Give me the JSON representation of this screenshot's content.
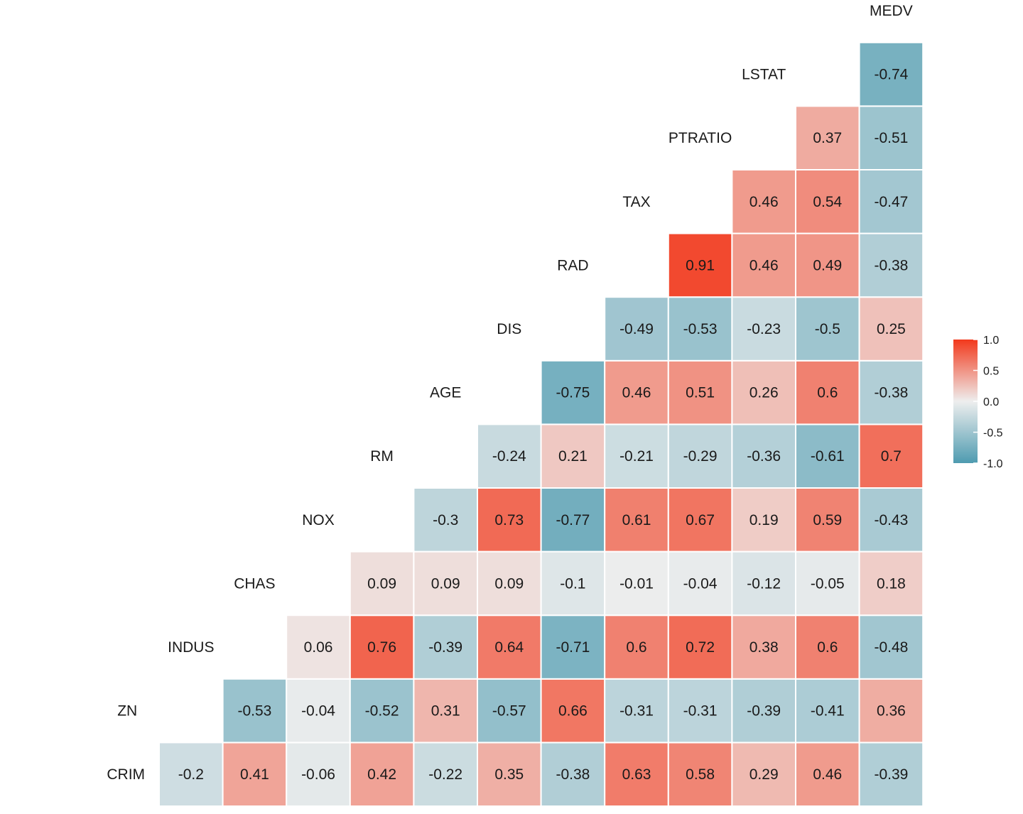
{
  "chart_data": {
    "type": "heatmap",
    "variables": [
      "CRIM",
      "ZN",
      "INDUS",
      "CHAS",
      "NOX",
      "RM",
      "AGE",
      "DIS",
      "RAD",
      "TAX",
      "PTRATIO",
      "LSTAT",
      "MEDV"
    ],
    "correlations": [
      [
        "CRIM",
        "ZN",
        -0.2
      ],
      [
        "CRIM",
        "INDUS",
        0.41
      ],
      [
        "CRIM",
        "CHAS",
        -0.06
      ],
      [
        "CRIM",
        "NOX",
        0.42
      ],
      [
        "CRIM",
        "RM",
        -0.22
      ],
      [
        "CRIM",
        "AGE",
        0.35
      ],
      [
        "CRIM",
        "DIS",
        -0.38
      ],
      [
        "CRIM",
        "RAD",
        0.63
      ],
      [
        "CRIM",
        "TAX",
        0.58
      ],
      [
        "CRIM",
        "PTRATIO",
        0.29
      ],
      [
        "CRIM",
        "LSTAT",
        0.46
      ],
      [
        "CRIM",
        "MEDV",
        -0.39
      ],
      [
        "ZN",
        "INDUS",
        -0.53
      ],
      [
        "ZN",
        "CHAS",
        -0.04
      ],
      [
        "ZN",
        "NOX",
        -0.52
      ],
      [
        "ZN",
        "RM",
        0.31
      ],
      [
        "ZN",
        "AGE",
        -0.57
      ],
      [
        "ZN",
        "DIS",
        0.66
      ],
      [
        "ZN",
        "RAD",
        -0.31
      ],
      [
        "ZN",
        "TAX",
        -0.31
      ],
      [
        "ZN",
        "PTRATIO",
        -0.39
      ],
      [
        "ZN",
        "LSTAT",
        -0.41
      ],
      [
        "ZN",
        "MEDV",
        0.36
      ],
      [
        "INDUS",
        "CHAS",
        0.06
      ],
      [
        "INDUS",
        "NOX",
        0.76
      ],
      [
        "INDUS",
        "RM",
        -0.39
      ],
      [
        "INDUS",
        "AGE",
        0.64
      ],
      [
        "INDUS",
        "DIS",
        -0.71
      ],
      [
        "INDUS",
        "RAD",
        0.6
      ],
      [
        "INDUS",
        "TAX",
        0.72
      ],
      [
        "INDUS",
        "PTRATIO",
        0.38
      ],
      [
        "INDUS",
        "LSTAT",
        0.6
      ],
      [
        "INDUS",
        "MEDV",
        -0.48
      ],
      [
        "CHAS",
        "NOX",
        0.09
      ],
      [
        "CHAS",
        "RM",
        0.09
      ],
      [
        "CHAS",
        "AGE",
        0.09
      ],
      [
        "CHAS",
        "DIS",
        -0.1
      ],
      [
        "CHAS",
        "RAD",
        -0.01
      ],
      [
        "CHAS",
        "TAX",
        -0.04
      ],
      [
        "CHAS",
        "PTRATIO",
        -0.12
      ],
      [
        "CHAS",
        "LSTAT",
        -0.05
      ],
      [
        "CHAS",
        "MEDV",
        0.18
      ],
      [
        "NOX",
        "RM",
        -0.3
      ],
      [
        "NOX",
        "AGE",
        0.73
      ],
      [
        "NOX",
        "DIS",
        -0.77
      ],
      [
        "NOX",
        "RAD",
        0.61
      ],
      [
        "NOX",
        "TAX",
        0.67
      ],
      [
        "NOX",
        "PTRATIO",
        0.19
      ],
      [
        "NOX",
        "LSTAT",
        0.59
      ],
      [
        "NOX",
        "MEDV",
        -0.43
      ],
      [
        "RM",
        "AGE",
        -0.24
      ],
      [
        "RM",
        "DIS",
        0.21
      ],
      [
        "RM",
        "RAD",
        -0.21
      ],
      [
        "RM",
        "TAX",
        -0.29
      ],
      [
        "RM",
        "PTRATIO",
        -0.36
      ],
      [
        "RM",
        "LSTAT",
        -0.61
      ],
      [
        "RM",
        "MEDV",
        0.7
      ],
      [
        "AGE",
        "DIS",
        -0.75
      ],
      [
        "AGE",
        "RAD",
        0.46
      ],
      [
        "AGE",
        "TAX",
        0.51
      ],
      [
        "AGE",
        "PTRATIO",
        0.26
      ],
      [
        "AGE",
        "LSTAT",
        0.6
      ],
      [
        "AGE",
        "MEDV",
        -0.38
      ],
      [
        "DIS",
        "RAD",
        -0.49
      ],
      [
        "DIS",
        "TAX",
        -0.53
      ],
      [
        "DIS",
        "PTRATIO",
        -0.23
      ],
      [
        "DIS",
        "LSTAT",
        -0.5
      ],
      [
        "DIS",
        "MEDV",
        0.25
      ],
      [
        "RAD",
        "TAX",
        0.91
      ],
      [
        "RAD",
        "PTRATIO",
        0.46
      ],
      [
        "RAD",
        "LSTAT",
        0.49
      ],
      [
        "RAD",
        "MEDV",
        -0.38
      ],
      [
        "TAX",
        "PTRATIO",
        0.46
      ],
      [
        "TAX",
        "LSTAT",
        0.54
      ],
      [
        "TAX",
        "MEDV",
        -0.47
      ],
      [
        "PTRATIO",
        "LSTAT",
        0.37
      ],
      [
        "PTRATIO",
        "MEDV",
        -0.51
      ],
      [
        "LSTAT",
        "MEDV",
        -0.74
      ]
    ],
    "legend": {
      "position": "right",
      "ticks": [
        "1.0",
        "0.5",
        "0.0",
        "-0.5",
        "-1.0"
      ],
      "range": [
        -1,
        1
      ]
    },
    "colors": {
      "low": "#4E9BB0",
      "mid": "#EEEEEE",
      "high": "#F2391C"
    },
    "grid": false
  }
}
